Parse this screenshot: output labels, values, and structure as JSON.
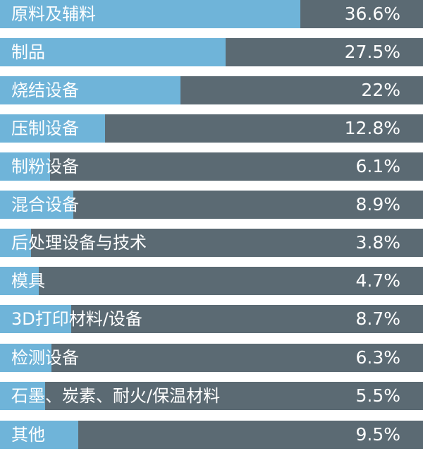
{
  "colors": {
    "bar_fill": "#6FB4D9",
    "bar_track": "#5B6A73",
    "text": "#FFFFFF",
    "background": "#FFFFFF"
  },
  "chart_data": {
    "type": "bar",
    "orientation": "horizontal",
    "categories": [
      "原料及辅料",
      "制品",
      "烧结设备",
      "压制设备",
      "制粉设备",
      "混合设备",
      "后处理设备与技术",
      "模具",
      "3D打印材料/设备",
      "检测设备",
      "石墨、炭素、耐火/保温材料",
      "其他"
    ],
    "value_labels": [
      "36.6%",
      "27.5%",
      "22%",
      "12.8%",
      "6.1%",
      "8.9%",
      "3.8%",
      "4.7%",
      "8.7%",
      "6.3%",
      "5.5%",
      "9.5%"
    ],
    "values": [
      36.6,
      27.5,
      22,
      12.8,
      6.1,
      8.9,
      3.8,
      4.7,
      8.7,
      6.3,
      5.5,
      9.5
    ],
    "xlim": [
      0,
      51.5
    ],
    "grid": false,
    "legend": "none"
  }
}
